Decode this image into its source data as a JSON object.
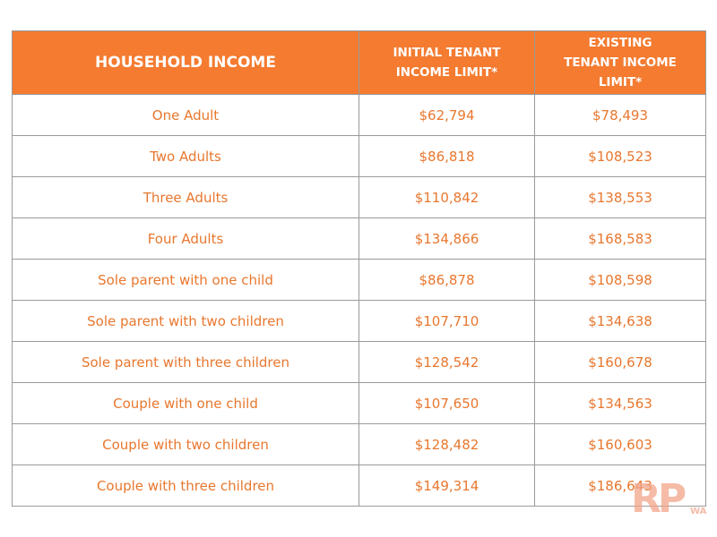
{
  "table": {
    "header": [
      "HOUSEHOLD INCOME",
      "INITIAL TENANT INCOME LIMIT*",
      "EXISTING TENANT INCOME LIMIT*"
    ],
    "rows": [
      [
        "One Adult",
        "$62,794",
        "$78,493"
      ],
      [
        "Two Adults",
        "$86,818",
        "$108,523"
      ],
      [
        "Three Adults",
        "$110,842",
        "$138,553"
      ],
      [
        "Four Adults",
        "$134,866",
        "$168,583"
      ],
      [
        "Sole parent with one child",
        "$86,878",
        "$108,598"
      ],
      [
        "Sole parent with two children",
        "$107,710",
        "$134,638"
      ],
      [
        "Sole parent with three children",
        "$128,542",
        "$160,678"
      ],
      [
        "Couple with one child",
        "$107,650",
        "$134,563"
      ],
      [
        "Couple with two children",
        "$128,482",
        "$160,603"
      ],
      [
        "Couple with three children",
        "$149,314",
        "$186,643"
      ]
    ]
  },
  "logo": {
    "letters": "RP",
    "sub": "WA"
  }
}
